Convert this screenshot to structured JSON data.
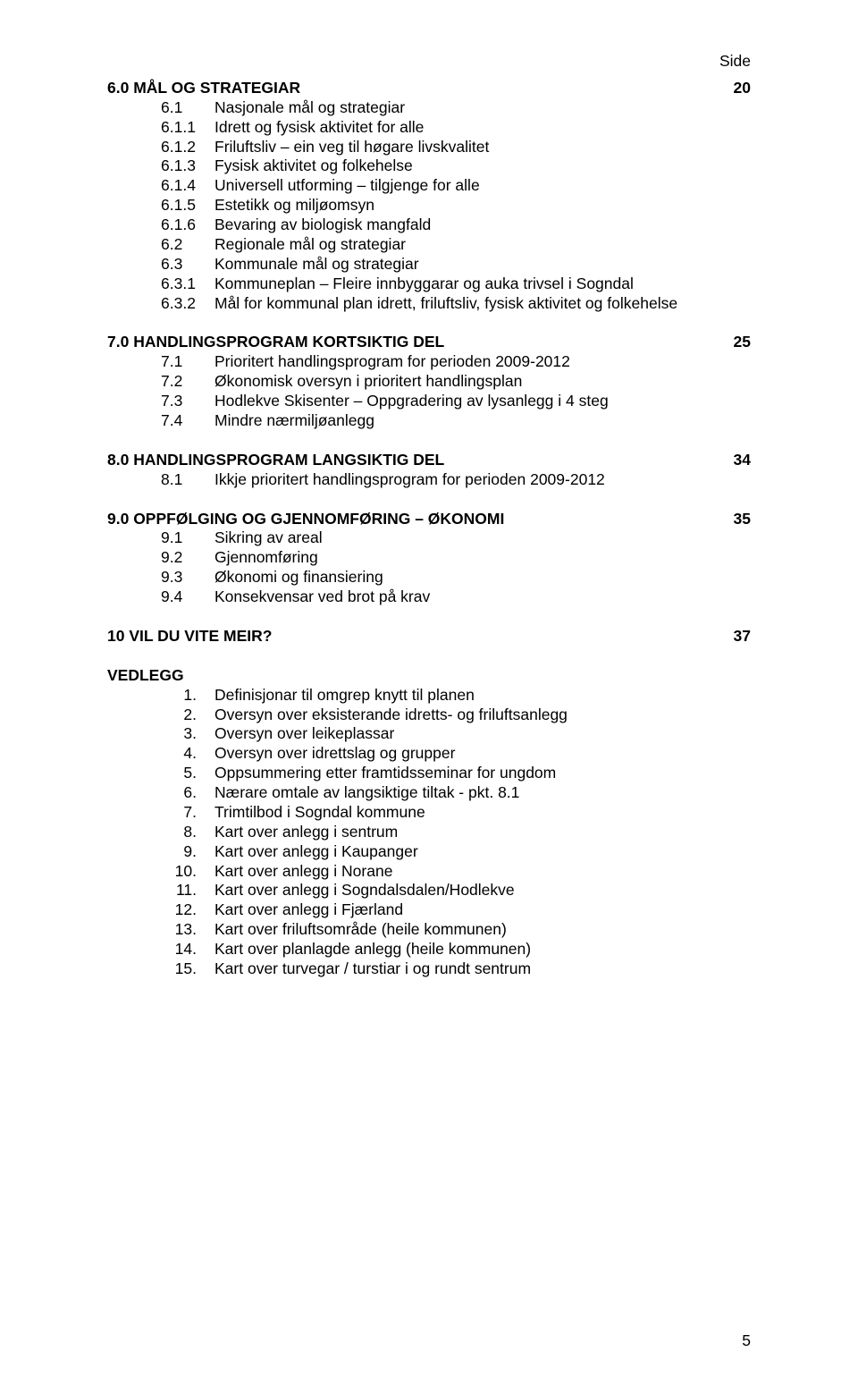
{
  "side_label": "Side",
  "page_number": "5",
  "sections": [
    {
      "title": "6.0 MÅL OG STRATEGIAR",
      "page": "20",
      "items": [
        {
          "num": "6.1",
          "text": "Nasjonale mål og strategiar"
        },
        {
          "num": "6.1.1",
          "text": "Idrett og fysisk aktivitet for alle"
        },
        {
          "num": "6.1.2",
          "text": "Friluftsliv – ein veg til høgare livskvalitet"
        },
        {
          "num": "6.1.3",
          "text": "Fysisk aktivitet og folkehelse"
        },
        {
          "num": "6.1.4",
          "text": "Universell utforming – tilgjenge for alle"
        },
        {
          "num": "6.1.5",
          "text": "Estetikk og miljøomsyn"
        },
        {
          "num": "6.1.6",
          "text": "Bevaring av biologisk mangfald"
        },
        {
          "num": "6.2",
          "text": "Regionale mål og strategiar"
        },
        {
          "num": "6.3",
          "text": "Kommunale mål og strategiar"
        },
        {
          "num": "6.3.1",
          "text": "Kommuneplan – Fleire innbyggarar og auka trivsel i Sogndal"
        },
        {
          "num": "6.3.2",
          "text": "Mål for kommunal plan idrett, friluftsliv, fysisk aktivitet og folkehelse"
        }
      ]
    },
    {
      "title": "7.0 HANDLINGSPROGRAM KORTSIKTIG DEL",
      "page": "25",
      "items": [
        {
          "num": "7.1",
          "text": "Prioritert handlingsprogram for perioden 2009-2012"
        },
        {
          "num": "7.2",
          "text": "Økonomisk oversyn i prioritert handlingsplan"
        },
        {
          "num": "7.3",
          "text": "Hodlekve Skisenter – Oppgradering av lysanlegg i 4 steg"
        },
        {
          "num": "7.4",
          "text": "Mindre nærmiljøanlegg"
        }
      ]
    },
    {
      "title": "8.0 HANDLINGSPROGRAM LANGSIKTIG DEL",
      "page": "34",
      "items": [
        {
          "num": "8.1",
          "text": "Ikkje prioritert handlingsprogram for perioden 2009-2012"
        }
      ]
    },
    {
      "title": "9.0 OPPFØLGING OG GJENNOMFØRING – ØKONOMI",
      "page": "35",
      "items": [
        {
          "num": "9.1",
          "text": "Sikring av areal"
        },
        {
          "num": "9.2",
          "text": "Gjennomføring"
        },
        {
          "num": "9.3",
          "text": "Økonomi og finansiering"
        },
        {
          "num": "9.4",
          "text": "Konsekvensar ved brot på krav"
        }
      ]
    },
    {
      "title": "10  VIL DU VITE MEIR?",
      "page": "37",
      "items": []
    }
  ],
  "vedlegg_title": "VEDLEGG",
  "vedlegg": [
    {
      "num": "1.",
      "text": "Definisjonar til omgrep knytt til planen"
    },
    {
      "num": "2.",
      "text": "Oversyn over eksisterande idretts- og friluftsanlegg"
    },
    {
      "num": "3.",
      "text": "Oversyn over leikeplassar"
    },
    {
      "num": "4.",
      "text": "Oversyn over idrettslag og grupper"
    },
    {
      "num": "5.",
      "text": "Oppsummering etter framtidsseminar for ungdom"
    },
    {
      "num": "6.",
      "text": "Nærare omtale av langsiktige tiltak - pkt. 8.1"
    },
    {
      "num": "7.",
      "text": " Trimtilbod i Sogndal kommune"
    },
    {
      "num": "8.",
      "text": "Kart over anlegg i sentrum"
    },
    {
      "num": "9.",
      "text": "Kart over anlegg i Kaupanger"
    },
    {
      "num": "10.",
      "text": "Kart over anlegg i Norane"
    },
    {
      "num": "11.",
      "text": "Kart over anlegg i Sogndalsdalen/Hodlekve"
    },
    {
      "num": "12.",
      "text": "Kart over anlegg i Fjærland"
    },
    {
      "num": "13.",
      "text": "Kart over friluftsområde (heile kommunen)"
    },
    {
      "num": "14.",
      "text": "Kart over planlagde anlegg (heile kommunen)"
    },
    {
      "num": "15.",
      "text": "Kart over turvegar / turstiar i og rundt sentrum"
    }
  ]
}
